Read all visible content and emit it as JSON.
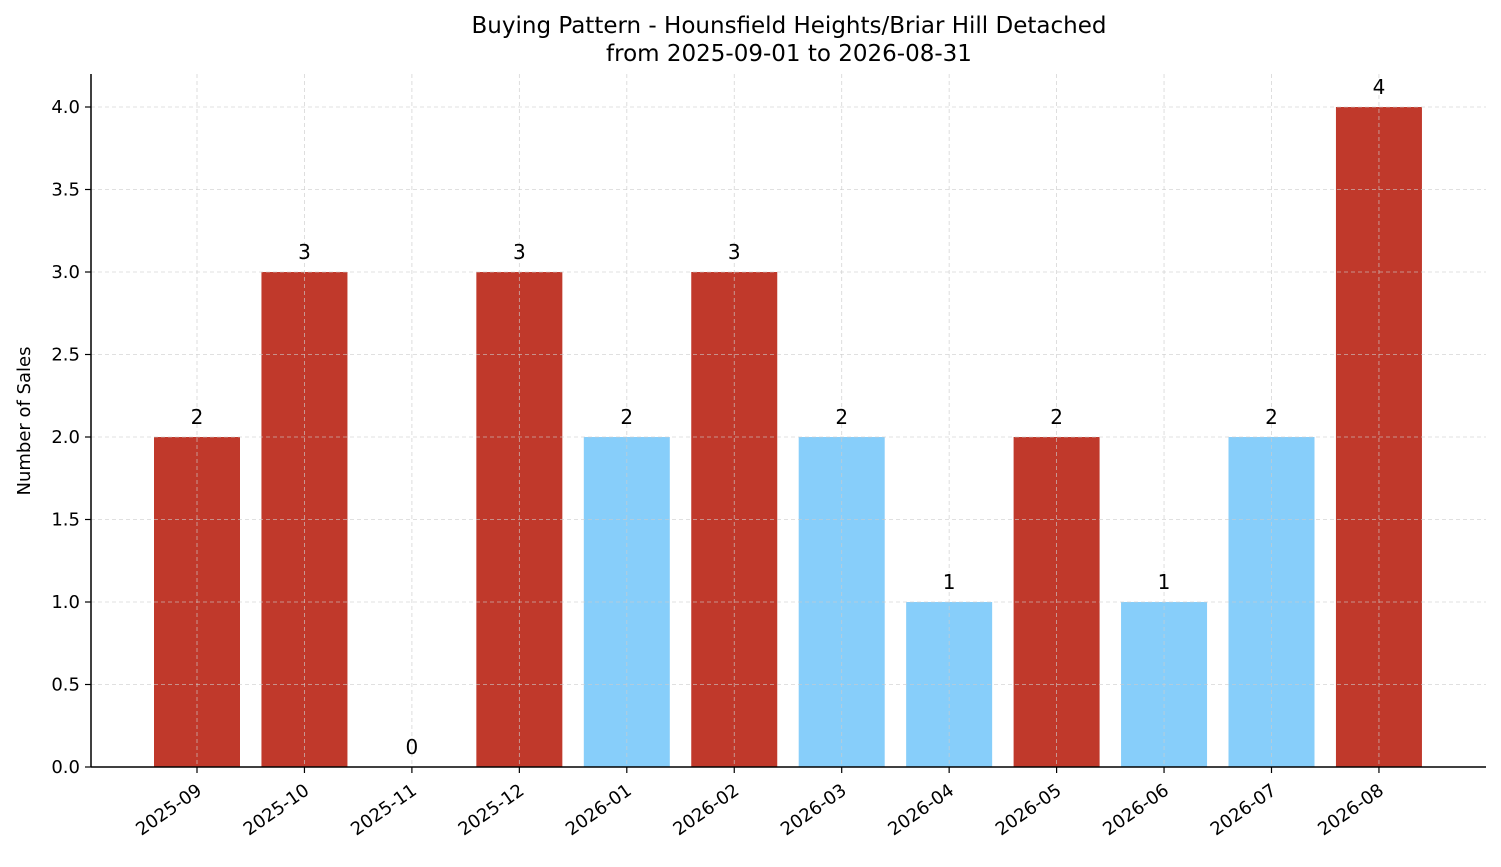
{
  "chart_data": {
    "type": "bar",
    "title": "Buying Pattern - Hounsfield Heights/Briar Hill Detached",
    "subtitle": "from 2025-09-01 to 2026-08-31",
    "xlabel": "",
    "ylabel": "Number of Sales",
    "categories": [
      "2025-09",
      "2025-10",
      "2025-11",
      "2025-12",
      "2026-01",
      "2026-02",
      "2026-03",
      "2026-04",
      "2026-05",
      "2026-06",
      "2026-07",
      "2026-08"
    ],
    "values": [
      2,
      3,
      0,
      3,
      2,
      3,
      2,
      1,
      2,
      1,
      2,
      4
    ],
    "bar_colors": [
      "#c0392b",
      "#c0392b",
      "#c0392b",
      "#c0392b",
      "#87cefa",
      "#c0392b",
      "#87cefa",
      "#87cefa",
      "#c0392b",
      "#87cefa",
      "#87cefa",
      "#c0392b"
    ],
    "data_labels": [
      "2",
      "3",
      "0",
      "3",
      "2",
      "3",
      "2",
      "1",
      "2",
      "1",
      "2",
      "4"
    ],
    "ylim": [
      0,
      4.2
    ],
    "yticks": [
      "0.0",
      "0.5",
      "1.0",
      "1.5",
      "2.0",
      "2.5",
      "3.0",
      "3.5",
      "4.0"
    ],
    "grid": true,
    "grid_style": "dashed",
    "legend": "none"
  }
}
